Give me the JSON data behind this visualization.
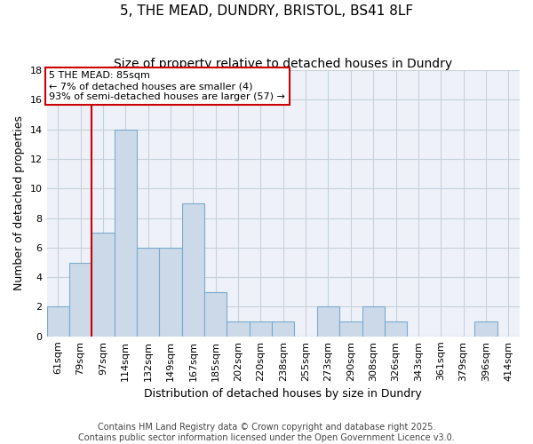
{
  "title": "5, THE MEAD, DUNDRY, BRISTOL, BS41 8LF",
  "subtitle": "Size of property relative to detached houses in Dundry",
  "xlabel": "Distribution of detached houses by size in Dundry",
  "ylabel": "Number of detached properties",
  "categories": [
    "61sqm",
    "79sqm",
    "97sqm",
    "114sqm",
    "132sqm",
    "149sqm",
    "167sqm",
    "185sqm",
    "202sqm",
    "220sqm",
    "238sqm",
    "255sqm",
    "273sqm",
    "290sqm",
    "308sqm",
    "326sqm",
    "343sqm",
    "361sqm",
    "379sqm",
    "396sqm",
    "414sqm"
  ],
  "values": [
    2,
    5,
    7,
    14,
    6,
    6,
    9,
    3,
    1,
    1,
    1,
    0,
    2,
    1,
    2,
    1,
    0,
    0,
    0,
    1,
    0
  ],
  "bar_color": "#ccd9e8",
  "bar_edge_color": "#7aaad0",
  "vline_x_index": 1,
  "vline_color": "#cc0000",
  "ylim": [
    0,
    18
  ],
  "yticks": [
    0,
    2,
    4,
    6,
    8,
    10,
    12,
    14,
    16,
    18
  ],
  "annotation_text": "5 THE MEAD: 85sqm\n← 7% of detached houses are smaller (4)\n93% of semi-detached houses are larger (57) →",
  "annotation_box_facecolor": "#ffffff",
  "annotation_box_edgecolor": "#cc0000",
  "footer1": "Contains HM Land Registry data © Crown copyright and database right 2025.",
  "footer2": "Contains public sector information licensed under the Open Government Licence v3.0.",
  "page_bg_color": "#ffffff",
  "axes_bg_color": "#eef2f8",
  "grid_color": "#c8d0dc",
  "title_fontsize": 11,
  "subtitle_fontsize": 10,
  "ylabel_fontsize": 9,
  "xlabel_fontsize": 9,
  "tick_fontsize": 8,
  "annotation_fontsize": 8,
  "footer_fontsize": 7
}
